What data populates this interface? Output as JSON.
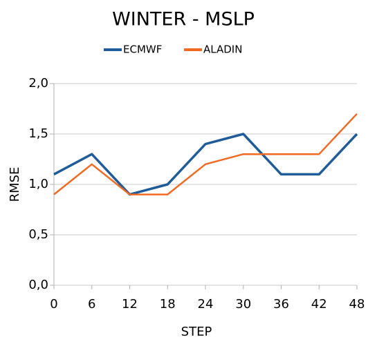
{
  "chart_data": {
    "type": "line",
    "title": "WINTER - MSLP",
    "x": [
      0,
      6,
      12,
      18,
      24,
      30,
      36,
      42,
      48
    ],
    "xlim": [
      0,
      48
    ],
    "xticks": [
      0,
      6,
      12,
      18,
      24,
      30,
      36,
      42,
      48
    ],
    "ylim": [
      0,
      2
    ],
    "yticks": [
      {
        "value": 0,
        "label": "0,0"
      },
      {
        "value": 0.5,
        "label": "0,5"
      },
      {
        "value": 1,
        "label": "1,0"
      },
      {
        "value": 1.5,
        "label": "1,5"
      },
      {
        "value": 2,
        "label": "2,0"
      }
    ],
    "x_label": "STEP",
    "y_label": "RMSE",
    "grid": true,
    "legend": "top",
    "series": [
      {
        "name": "ECMWF",
        "color": "#1f5c99",
        "values": [
          1.1,
          1.3,
          0.9,
          1.0,
          1.4,
          1.5,
          1.1,
          1.1,
          1.5
        ]
      },
      {
        "name": "ALADIN",
        "color": "#f26a21",
        "values": [
          0.9,
          1.2,
          0.9,
          0.9,
          1.2,
          1.3,
          1.3,
          1.3,
          1.7
        ]
      }
    ]
  }
}
